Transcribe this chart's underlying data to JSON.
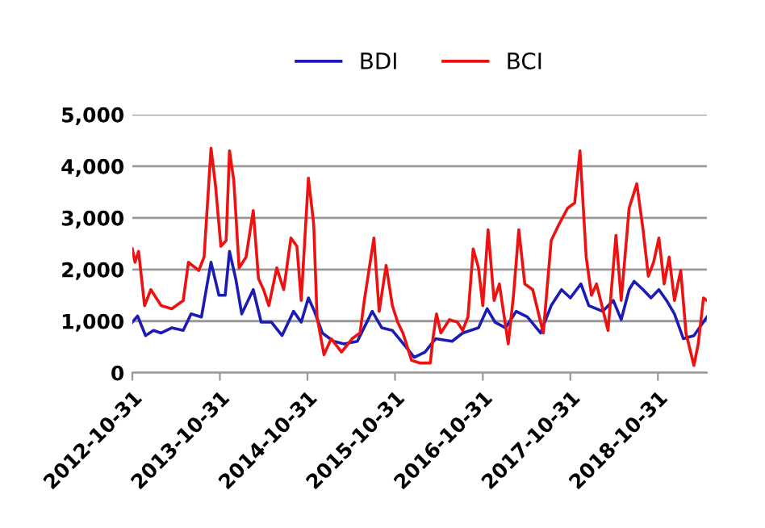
{
  "chart_data": {
    "type": "line",
    "legend": "top",
    "grid": "y",
    "line_style": "solid",
    "marker": "none",
    "xlim": [
      "2012-10-31",
      "2019-05-23"
    ],
    "xticks": [
      "2012-10-31",
      "2013-10-31",
      "2014-10-31",
      "2015-10-31",
      "2016-10-31",
      "2017-10-31",
      "2018-10-31"
    ],
    "ylim": [
      0,
      5000
    ],
    "yticks": [
      {
        "value": 0,
        "label": "0"
      },
      {
        "value": 1000,
        "label": "1,000"
      },
      {
        "value": 2000,
        "label": "2,000"
      },
      {
        "value": 3000,
        "label": "3,000"
      },
      {
        "value": 4000,
        "label": "4,000"
      },
      {
        "value": 5000,
        "label": "5,000"
      }
    ],
    "series": [
      {
        "name": "BDI",
        "color": "#1c1cb4",
        "x": [
          "2012-10-31",
          "2012-11-22",
          "2012-12-25",
          "2013-01-27",
          "2013-02-28",
          "2013-04-13",
          "2013-05-31",
          "2013-07-03",
          "2013-08-15",
          "2013-09-24",
          "2013-10-27",
          "2013-11-22",
          "2013-12-10",
          "2014-01-05",
          "2014-01-30",
          "2014-03-19",
          "2014-04-21",
          "2014-06-03",
          "2014-07-17",
          "2014-09-03",
          "2014-10-05",
          "2014-11-04",
          "2014-11-29",
          "2015-01-01",
          "2015-02-17",
          "2015-04-02",
          "2015-05-27",
          "2015-07-28",
          "2015-09-06",
          "2015-10-20",
          "2015-12-14",
          "2016-01-19",
          "2016-03-04",
          "2016-04-17",
          "2016-06-25",
          "2016-08-08",
          "2016-10-13",
          "2016-11-18",
          "2016-12-21",
          "2017-02-03",
          "2017-03-19",
          "2017-05-05",
          "2017-06-29",
          "2017-08-12",
          "2017-09-24",
          "2017-10-31",
          "2017-12-14",
          "2018-01-16",
          "2018-03-15",
          "2018-04-28",
          "2018-05-31",
          "2018-07-03",
          "2018-07-24",
          "2018-08-30",
          "2018-10-02",
          "2018-11-04",
          "2018-12-06",
          "2019-01-08",
          "2019-02-14",
          "2019-03-30",
          "2019-05-23"
        ],
        "values": [
          980,
          1100,
          720,
          820,
          770,
          870,
          820,
          1140,
          1080,
          2140,
          1500,
          1500,
          2350,
          1820,
          1140,
          1610,
          980,
          980,
          720,
          1190,
          980,
          1450,
          1190,
          770,
          610,
          560,
          610,
          1190,
          870,
          820,
          510,
          300,
          400,
          660,
          610,
          770,
          870,
          1240,
          980,
          870,
          1190,
          1080,
          770,
          1300,
          1610,
          1450,
          1720,
          1300,
          1190,
          1400,
          1030,
          1610,
          1770,
          1610,
          1450,
          1610,
          1400,
          1140,
          660,
          720,
          1080
        ]
      },
      {
        "name": "BCI",
        "color": "#ee1111",
        "x": [
          "2012-10-31",
          "2012-11-11",
          "2012-11-26",
          "2012-12-21",
          "2013-01-16",
          "2013-02-28",
          "2013-04-13",
          "2013-05-31",
          "2013-06-22",
          "2013-08-04",
          "2013-08-26",
          "2013-09-24",
          "2013-10-13",
          "2013-11-04",
          "2013-11-26",
          "2013-12-10",
          "2013-12-28",
          "2014-01-19",
          "2014-02-17",
          "2014-03-19",
          "2014-04-10",
          "2014-05-01",
          "2014-05-23",
          "2014-06-25",
          "2014-07-24",
          "2014-08-23",
          "2014-09-17",
          "2014-10-05",
          "2014-11-04",
          "2014-11-26",
          "2014-12-10",
          "2015-01-08",
          "2015-02-07",
          "2015-03-22",
          "2015-05-05",
          "2015-06-07",
          "2015-06-25",
          "2015-08-04",
          "2015-08-26",
          "2015-09-24",
          "2015-10-20",
          "2015-11-11",
          "2015-12-03",
          "2016-01-08",
          "2016-02-10",
          "2016-03-26",
          "2016-04-06",
          "2016-04-21",
          "2016-05-09",
          "2016-06-14",
          "2016-07-17",
          "2016-08-08",
          "2016-08-30",
          "2016-09-21",
          "2016-10-13",
          "2016-10-31",
          "2016-11-22",
          "2016-12-17",
          "2017-01-08",
          "2017-02-14",
          "2017-03-08",
          "2017-03-30",
          "2017-04-24",
          "2017-05-27",
          "2017-07-10",
          "2017-08-12",
          "2017-09-14",
          "2017-10-20",
          "2017-11-18",
          "2017-12-10",
          "2018-01-05",
          "2018-01-27",
          "2018-02-17",
          "2018-04-06",
          "2018-05-09",
          "2018-05-31",
          "2018-07-03",
          "2018-08-04",
          "2018-08-30",
          "2018-09-21",
          "2018-10-13",
          "2018-11-04",
          "2018-11-26",
          "2018-12-17",
          "2019-01-08",
          "2019-02-03",
          "2019-02-25",
          "2019-03-30",
          "2019-04-17",
          "2019-05-09",
          "2019-05-23"
        ],
        "values": [
          2400,
          2140,
          2350,
          1300,
          1610,
          1300,
          1240,
          1400,
          2140,
          1980,
          2240,
          4350,
          3610,
          2450,
          2560,
          4300,
          3720,
          2030,
          2240,
          3140,
          1820,
          1610,
          1300,
          2030,
          1610,
          2610,
          2450,
          1400,
          3770,
          2880,
          1080,
          350,
          660,
          400,
          660,
          770,
          1400,
          2610,
          1190,
          2080,
          1300,
          980,
          770,
          240,
          190,
          190,
          660,
          1140,
          770,
          1030,
          980,
          820,
          1080,
          2400,
          2030,
          1300,
          2770,
          1400,
          1720,
          560,
          1500,
          2770,
          1720,
          1610,
          770,
          2560,
          2880,
          3190,
          3290,
          4300,
          2240,
          1500,
          1720,
          820,
          2660,
          1400,
          3190,
          3660,
          2770,
          1870,
          2140,
          2610,
          1720,
          2240,
          1400,
          1980,
          770,
          140,
          560,
          1450,
          1400
        ]
      }
    ]
  }
}
